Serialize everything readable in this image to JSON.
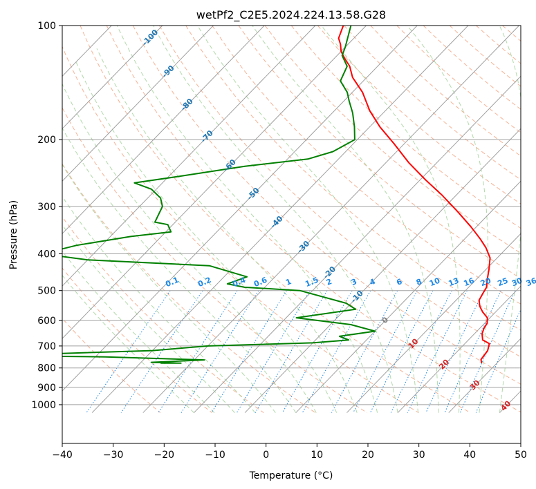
{
  "chart_data": {
    "type": "line",
    "title": "wetPf2_C2E5.2024.224.13.58.G28",
    "xlabel": "Temperature (°C)",
    "ylabel": "Pressure (hPa)",
    "xlim": [
      -40,
      50
    ],
    "ylim": [
      1050,
      100
    ],
    "y_scale": "log",
    "x_ticks": [
      "−40",
      "−30",
      "−20",
      "−10",
      "0",
      "10",
      "20",
      "30",
      "40",
      "50"
    ],
    "y_ticks": [
      "100",
      "200",
      "300",
      "400",
      "500",
      "600",
      "700",
      "800",
      "900",
      "1000"
    ],
    "grid": true,
    "colors": {
      "temperature": "#ff0000",
      "dewpoint": "#008000",
      "isotherm": "#a0a0a0",
      "dry_adiabat": "#f4a582",
      "moist_adiabat": "#a8d5a0",
      "mixing_ratio": "#1e88e5",
      "isotherm_label_cold": "#1f77b4",
      "isotherm_label_warm": "#d62728",
      "isotherm_label_zero": "#808080"
    },
    "series": [
      {
        "id": "temperature",
        "points": [
          [
            27.0,
            777
          ],
          [
            26.2,
            760
          ],
          [
            25.8,
            720
          ],
          [
            24.8,
            690
          ],
          [
            22.8,
            675
          ],
          [
            21.5,
            650
          ],
          [
            20.8,
            628
          ],
          [
            20.5,
            610
          ],
          [
            19.5,
            590
          ],
          [
            17.5,
            570
          ],
          [
            15.8,
            550
          ],
          [
            14.5,
            530
          ],
          [
            14.0,
            510
          ],
          [
            13.5,
            490
          ],
          [
            12.3,
            470
          ],
          [
            10.6,
            440
          ],
          [
            8.6,
            410
          ],
          [
            5.8,
            385
          ],
          [
            3.0,
            365
          ],
          [
            -1.0,
            340
          ],
          [
            -6.5,
            310
          ],
          [
            -12.8,
            280
          ],
          [
            -19.0,
            255
          ],
          [
            -25.5,
            230
          ],
          [
            -32.0,
            205
          ],
          [
            -38.0,
            185
          ],
          [
            -43.0,
            168
          ],
          [
            -48.0,
            150
          ],
          [
            -52.8,
            137
          ],
          [
            -55.5,
            128
          ],
          [
            -58.0,
            122
          ],
          [
            -60.0,
            117
          ],
          [
            -61.5,
            112
          ],
          [
            -63.0,
            108
          ],
          [
            -64.5,
            100
          ]
        ]
      },
      {
        "id": "dewpoint",
        "points": [
          [
            -36.0,
            777
          ],
          [
            -32.0,
            777
          ],
          [
            -38.0,
            773
          ],
          [
            -28.0,
            762
          ],
          [
            -48.0,
            748
          ],
          [
            -70.0,
            742
          ],
          [
            -40.0,
            720
          ],
          [
            -30.0,
            700
          ],
          [
            -10.0,
            687
          ],
          [
            -3.5,
            675
          ],
          [
            -6.0,
            660
          ],
          [
            0.0,
            640
          ],
          [
            -6.0,
            615
          ],
          [
            -18.0,
            590
          ],
          [
            -8.0,
            560
          ],
          [
            -11.0,
            540
          ],
          [
            -22.5,
            500
          ],
          [
            -34.0,
            490
          ],
          [
            -38.0,
            480
          ],
          [
            -35.5,
            460
          ],
          [
            -45.0,
            430
          ],
          [
            -70.0,
            415
          ],
          [
            -80.0,
            400
          ],
          [
            -75.0,
            380
          ],
          [
            -66.0,
            360
          ],
          [
            -59.0,
            350
          ],
          [
            -61.0,
            335
          ],
          [
            -64.0,
            330
          ],
          [
            -65.5,
            300
          ],
          [
            -67.5,
            285
          ],
          [
            -71.0,
            270
          ],
          [
            -75.5,
            260
          ],
          [
            -68.0,
            250
          ],
          [
            -57.0,
            235
          ],
          [
            -46.0,
            225
          ],
          [
            -42.5,
            215
          ],
          [
            -40.5,
            200
          ],
          [
            -43.0,
            185
          ],
          [
            -46.0,
            170
          ],
          [
            -49.0,
            158
          ],
          [
            -51.0,
            150
          ],
          [
            -54.5,
            140
          ],
          [
            -56.0,
            128
          ],
          [
            -59.0,
            120
          ],
          [
            -60.0,
            114
          ],
          [
            -63.0,
            100
          ]
        ]
      }
    ],
    "isotherm_labels": [
      "-100",
      "-90",
      "-80",
      "-70",
      "-60",
      "-50",
      "-40",
      "-30",
      "-20",
      "-10",
      "0",
      "10",
      "20",
      "30",
      "40"
    ],
    "mixing_ratio_labels": [
      "0.1",
      "0.2",
      "0.4",
      "0.6",
      "1",
      "1.5",
      "2",
      "3",
      "4",
      "6",
      "8",
      "10",
      "13",
      "16",
      "20",
      "25",
      "30",
      "36"
    ]
  }
}
